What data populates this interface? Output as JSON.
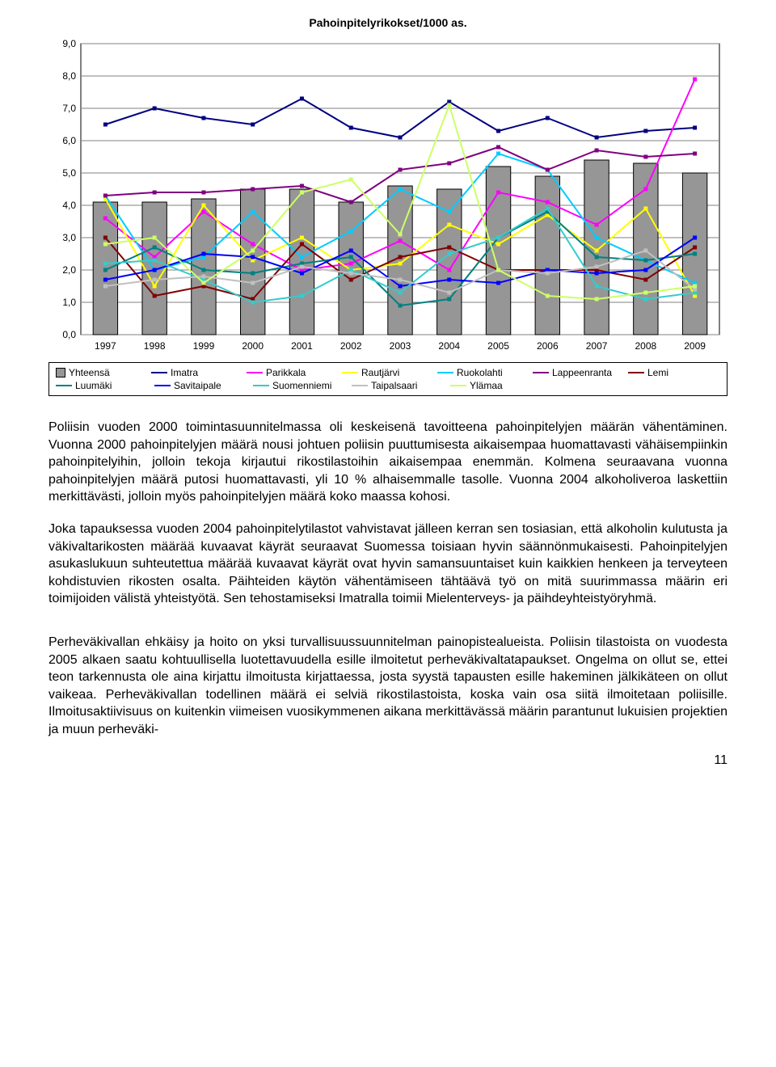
{
  "chart": {
    "title": "Pahoinpitelyrikokset/1000 as.",
    "type": "bar+line",
    "background_color": "#ffffff",
    "grid_color": "#808080",
    "axis_fontsize": 12,
    "title_fontsize": 14,
    "ylim": [
      0,
      9
    ],
    "ytick_step": 1,
    "ytick_labels": [
      "0,0",
      "1,0",
      "2,0",
      "3,0",
      "4,0",
      "5,0",
      "6,0",
      "7,0",
      "8,0",
      "9,0"
    ],
    "categories": [
      "1997",
      "1998",
      "1999",
      "2000",
      "2001",
      "2002",
      "2003",
      "2004",
      "2005",
      "2006",
      "2007",
      "2008",
      "2009"
    ],
    "bars": {
      "label": "Yhteensä",
      "color": "#969696",
      "border": "#000000",
      "values": [
        4.1,
        4.1,
        4.2,
        4.5,
        4.5,
        4.1,
        4.6,
        4.5,
        5.2,
        4.9,
        5.4,
        5.3,
        5.0
      ],
      "bar_width": 0.5
    },
    "lines": [
      {
        "label": "Imatra",
        "color": "#000080",
        "width": 2,
        "values": [
          6.5,
          7.0,
          6.7,
          6.5,
          7.3,
          6.4,
          6.1,
          7.2,
          6.3,
          6.7,
          6.1,
          6.3,
          6.4
        ]
      },
      {
        "label": "Parikkala",
        "color": "#ff00ff",
        "width": 2,
        "values": [
          3.6,
          2.4,
          3.8,
          2.8,
          2.0,
          2.2,
          2.9,
          2.0,
          4.4,
          4.1,
          3.4,
          4.5,
          7.9
        ]
      },
      {
        "label": "Rautjärvi",
        "color": "#ffff00",
        "width": 2,
        "values": [
          4.2,
          1.5,
          4.0,
          2.3,
          3.0,
          2.0,
          2.2,
          3.4,
          2.8,
          3.7,
          2.6,
          3.9,
          1.2
        ]
      },
      {
        "label": "Ruokolahti",
        "color": "#00ccff",
        "width": 2,
        "values": [
          4.3,
          2.0,
          2.4,
          3.8,
          2.4,
          3.2,
          4.5,
          3.8,
          5.6,
          5.1,
          3.0,
          2.3,
          1.6
        ]
      },
      {
        "label": "Lappeenranta",
        "color": "#800080",
        "width": 2,
        "values": [
          4.3,
          4.4,
          4.4,
          4.5,
          4.6,
          4.1,
          5.1,
          5.3,
          5.8,
          5.1,
          5.7,
          5.5,
          5.6
        ]
      },
      {
        "label": "Lemi",
        "color": "#800000",
        "width": 2,
        "values": [
          3.0,
          1.2,
          1.5,
          1.1,
          2.8,
          1.7,
          2.4,
          2.7,
          2.0,
          2.0,
          2.0,
          1.7,
          2.7
        ]
      },
      {
        "label": "Luumäki",
        "color": "#008080",
        "width": 2,
        "values": [
          2.0,
          2.7,
          2.0,
          1.9,
          2.2,
          2.4,
          0.9,
          1.1,
          3.0,
          3.8,
          2.4,
          2.3,
          2.5
        ]
      },
      {
        "label": "Savitaipale",
        "color": "#0000ff",
        "width": 2,
        "values": [
          1.7,
          2.0,
          2.5,
          2.4,
          1.9,
          2.6,
          1.5,
          1.7,
          1.6,
          2.0,
          1.9,
          2.0,
          3.0
        ]
      },
      {
        "label": "Suomenniemi",
        "color": "#33cccc",
        "width": 2,
        "values": [
          2.2,
          2.3,
          1.7,
          1.0,
          1.2,
          2.0,
          1.3,
          2.5,
          3.0,
          3.9,
          1.5,
          1.1,
          1.3
        ]
      },
      {
        "label": "Taipalsaari",
        "color": "#c0c0c0",
        "width": 2,
        "values": [
          1.5,
          1.7,
          1.8,
          1.6,
          2.1,
          1.9,
          1.7,
          1.3,
          2.0,
          1.9,
          2.1,
          2.6,
          1.4
        ]
      },
      {
        "label": "Ylämaa",
        "color": "#ccff66",
        "width": 2,
        "values": [
          2.8,
          3.0,
          1.6,
          2.6,
          4.4,
          4.8,
          3.1,
          7.1,
          2.0,
          1.2,
          1.1,
          1.3,
          1.5
        ]
      }
    ],
    "legend_rows": [
      [
        "Yhteensä",
        "Imatra",
        "Parikkala",
        "Rautjärvi",
        "Ruokolahti",
        "Lappeenranta",
        "Lemi"
      ],
      [
        "Luumäki",
        "Savitaipale",
        "Suomenniemi",
        "Taipalsaari",
        "Ylämaa"
      ]
    ]
  },
  "paragraphs": {
    "p1": "Poliisin vuoden 2000 toimintasuunnitelmassa oli keskeisenä tavoitteena pahoinpitelyjen määrän vähentäminen. Vuonna 2000 pahoinpitelyjen määrä nousi johtuen poliisin puuttumisesta aikaisempaa huomattavasti vähäisempiinkin pahoinpitelyihin, jolloin tekoja kirjautui rikostilastoihin aikaisempaa enemmän. Kolmena seuraavana vuonna pahoinpitelyjen määrä putosi huomattavasti, yli 10 % alhaisemmalle tasolle. Vuonna 2004 alkoholiveroa laskettiin merkittävästi, jolloin myös pahoinpitelyjen määrä koko maassa kohosi.",
    "p2": "Joka tapauksessa vuoden 2004 pahoinpitelytilastot vahvistavat jälleen kerran sen tosiasian, että alkoholin kulutusta ja väkivaltarikosten määrää kuvaavat käyrät seuraavat Suomessa toisiaan hyvin säännönmukaisesti. Pahoinpitelyjen asukaslukuun suhteutettua määrää kuvaavat käyrät ovat hyvin samansuuntaiset kuin kaikkien henkeen ja terveyteen kohdistuvien rikosten osalta. Päihteiden käytön vähentämiseen tähtäävä työ on mitä suurimmassa määrin eri toimijoiden välistä yhteistyötä. Sen tehostamiseksi Imatralla toimii Mielenterveys- ja päihdeyhteistyöryhmä.",
    "p3": "Perheväkivallan ehkäisy ja hoito on yksi turvallisuussuunnitelman painopistealueista. Poliisin tilastoista on vuodesta 2005 alkaen saatu kohtuullisella luotettavuudella esille ilmoitetut perheväkivaltatapaukset. Ongelma on ollut se, ettei teon tarkennusta ole aina kirjattu ilmoitusta kirjattaessa, josta syystä tapausten esille hakeminen jälkikäteen on ollut vaikeaa. Perheväkivallan todellinen määrä ei selviä rikostilastoista, koska vain osa siitä ilmoitetaan poliisille. Ilmoitusaktiivisuus on kuitenkin viimeisen vuosikymmenen aikana merkittävässä määrin parantunut lukuisien projektien ja muun perheväki-"
  },
  "page_number": "11"
}
